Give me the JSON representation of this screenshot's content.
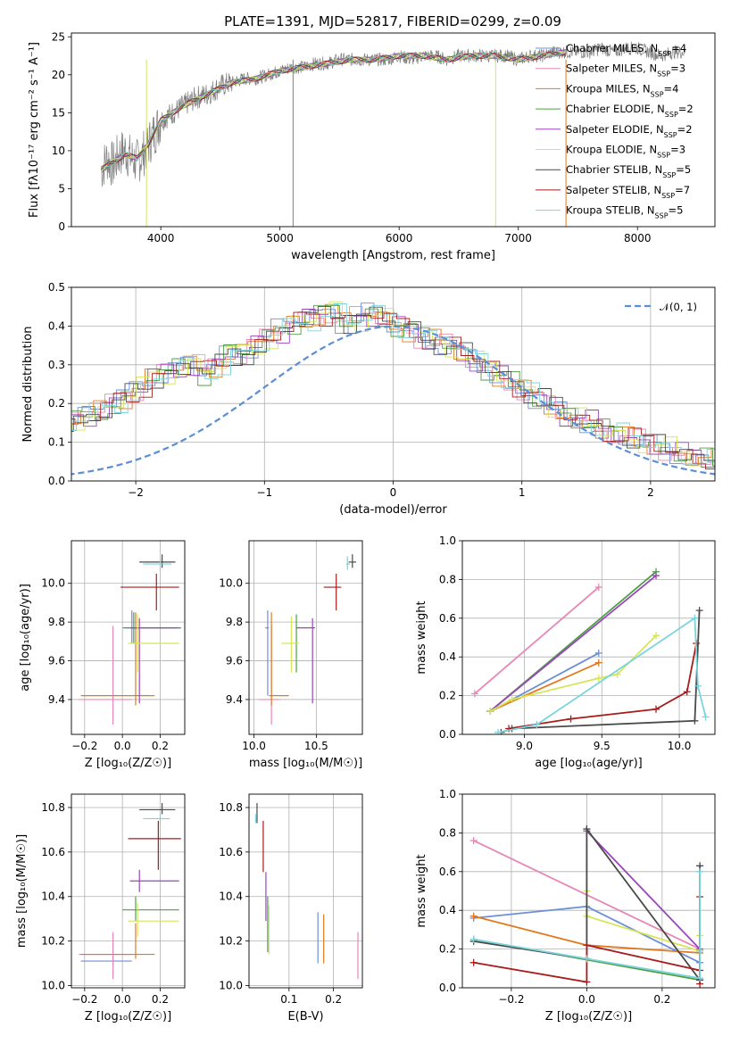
{
  "figure_title": "PLATE=1391, MJD=52817, FIBERID=0299, z=0.09",
  "models": [
    {
      "name": "Chabrier MILES",
      "nssp": "4",
      "color": "#6d8fd6"
    },
    {
      "name": "Salpeter MILES",
      "nssp": "3",
      "color": "#e687b6"
    },
    {
      "name": "Kroupa MILES",
      "nssp": "4",
      "color": "#e07a20"
    },
    {
      "name": "Chabrier ELODIE",
      "nssp": "2",
      "color": "#4f9e45"
    },
    {
      "name": "Salpeter ELODIE",
      "nssp": "2",
      "color": "#9a45bb"
    },
    {
      "name": "Kroupa ELODIE",
      "nssp": "3",
      "color": "#d4e655"
    },
    {
      "name": "Chabrier STELIB",
      "nssp": "5",
      "color": "#4a4a4a"
    },
    {
      "name": "Salpeter STELIB",
      "nssp": "7",
      "color": "#a81c1c"
    },
    {
      "name": "Kroupa STELIB",
      "nssp": "5",
      "color": "#7ad4dc"
    }
  ],
  "chart_data": [
    {
      "id": "spectrum",
      "type": "line",
      "title": "PLATE=1391, MJD=52817, FIBERID=0299, z=0.09",
      "xlabel": "wavelength [Angstrom, rest frame]",
      "ylabel": "Flux [fλ10⁻¹⁷ erg cm⁻² s⁻¹ A⁻¹]",
      "xlim": [
        3250,
        8650
      ],
      "ylim": [
        0,
        25.5
      ],
      "xticks": [
        4000,
        5000,
        6000,
        7000,
        8000
      ],
      "yticks": [
        0,
        5,
        10,
        15,
        20,
        25
      ],
      "grid": false,
      "legend": "right",
      "data_series": {
        "name": "",
        "color": "#7f7f7f",
        "x": [
          3500,
          3550,
          3600,
          3650,
          3700,
          3750,
          3800,
          3850,
          3900,
          3950,
          4000,
          4100,
          4200,
          4300,
          4400,
          4500,
          4600,
          4700,
          4800,
          4900,
          5000,
          5100,
          5200,
          5300,
          5400,
          5500,
          5600,
          5700,
          5800,
          5900,
          6000,
          6100,
          6200,
          6300,
          6400,
          6500,
          6600,
          6700,
          6800,
          6900,
          7000,
          7100,
          7200,
          7300,
          7400,
          7500,
          7600,
          7700,
          7800,
          7900,
          8000,
          8100,
          8200,
          8300,
          8400
        ],
        "y": [
          7.5,
          9.0,
          8.0,
          9.5,
          10.0,
          9.0,
          8.5,
          9.5,
          11.0,
          12.5,
          14.0,
          15.0,
          16.0,
          17.0,
          17.5,
          18.5,
          19.0,
          19.5,
          19.5,
          20.0,
          20.5,
          21.0,
          21.0,
          21.5,
          21.5,
          22.0,
          22.0,
          22.0,
          22.0,
          22.0,
          22.5,
          22.0,
          22.5,
          22.5,
          22.0,
          22.5,
          22.5,
          22.5,
          22.5,
          22.5,
          22.0,
          22.5,
          22.5,
          23.0,
          23.0,
          23.0,
          23.0,
          23.5,
          23.0,
          23.5,
          23.5,
          23.0,
          22.5,
          23.0,
          23.0
        ]
      },
      "model_series": {
        "x": [
          3500,
          3600,
          3700,
          3800,
          3900,
          4000,
          4200,
          4400,
          4600,
          4800,
          5000,
          5200,
          5400,
          5600,
          5800,
          6000,
          6200,
          6400,
          6600,
          6800,
          7000,
          7200,
          7400
        ],
        "y": [
          7.5,
          8.5,
          9.5,
          9.0,
          11.0,
          14.0,
          16.0,
          17.5,
          19.0,
          19.5,
          20.5,
          21.0,
          21.5,
          22.0,
          22.0,
          22.5,
          22.5,
          22.0,
          22.5,
          22.5,
          22.0,
          22.5,
          23.0
        ]
      }
    },
    {
      "id": "residuals",
      "type": "bar",
      "xlabel": "(data-model)/error",
      "ylabel": "Normed distribution",
      "xlim": [
        -2.5,
        2.5
      ],
      "ylim": [
        0,
        0.5
      ],
      "xticks": [
        -2,
        -1,
        0,
        1,
        2
      ],
      "yticks": [
        0.0,
        0.1,
        0.2,
        0.3,
        0.4,
        0.5
      ],
      "grid": true,
      "legend": "top-right",
      "reference": {
        "name": "𝒩(0, 1)",
        "color": "#5b8ed6"
      },
      "bin_width": 0.1,
      "base_hist": [
        0.05,
        0.05,
        0.055,
        0.06,
        0.07,
        0.08,
        0.09,
        0.1,
        0.11,
        0.13,
        0.15,
        0.16,
        0.17,
        0.18,
        0.2,
        0.22,
        0.24,
        0.27,
        0.28,
        0.29,
        0.3,
        0.28,
        0.3,
        0.33,
        0.33,
        0.35,
        0.37,
        0.39,
        0.41,
        0.42,
        0.43,
        0.44,
        0.41,
        0.42,
        0.43,
        0.42,
        0.4,
        0.39,
        0.37,
        0.36,
        0.35,
        0.33,
        0.31,
        0.29,
        0.27,
        0.25,
        0.23,
        0.21,
        0.19,
        0.17,
        0.16,
        0.15,
        0.13,
        0.12,
        0.11,
        0.1,
        0.09,
        0.08,
        0.07,
        0.06,
        0.055,
        0.05,
        0.045,
        0.04,
        0.035,
        0.03,
        0.03,
        0.03,
        0.025,
        0.025,
        0.025,
        0.025
      ]
    },
    {
      "id": "age-vs-Z",
      "type": "scatter",
      "xlabel": "Z [log₁₀(Z/Z☉)]",
      "ylabel": "age  [log₁₀(age/yr)]",
      "xlim": [
        -0.27,
        0.33
      ],
      "ylim": [
        9.22,
        10.22
      ],
      "xticks": [
        -0.2,
        0.0,
        0.2
      ],
      "yticks": [
        9.4,
        9.6,
        9.8,
        10.0
      ],
      "grid": true,
      "points": [
        {
          "m": 0,
          "x": 0.05,
          "y": 9.77,
          "xerr": [
            0.05,
            0.26
          ],
          "yerr": [
            0.08,
            0.09
          ]
        },
        {
          "m": 1,
          "x": -0.05,
          "y": 9.4,
          "xerr": [
            0.18,
            0.1
          ],
          "yerr": [
            0.13,
            0.38
          ]
        },
        {
          "m": 2,
          "x": 0.07,
          "y": 9.42,
          "xerr": [
            0.29,
            0.1
          ],
          "yerr": [
            0.05,
            0.43
          ]
        },
        {
          "m": 3,
          "x": 0.06,
          "y": 9.77,
          "xerr": [
            0.05,
            0.25
          ],
          "yerr": [
            0.08,
            0.08
          ]
        },
        {
          "m": 4,
          "x": 0.09,
          "y": 9.77,
          "xerr": [
            0.05,
            0.2
          ],
          "yerr": [
            0.39,
            0.05
          ]
        },
        {
          "m": 5,
          "x": 0.08,
          "y": 9.69,
          "xerr": [
            0.05,
            0.22
          ],
          "yerr": [
            0.15,
            0.15
          ]
        },
        {
          "m": 6,
          "x": 0.21,
          "y": 10.11,
          "xerr": [
            0.12,
            0.07
          ],
          "yerr": [
            0.03,
            0.04
          ]
        },
        {
          "m": 7,
          "x": 0.18,
          "y": 9.98,
          "xerr": [
            0.19,
            0.12
          ],
          "yerr": [
            0.12,
            0.07
          ]
        },
        {
          "m": 8,
          "x": 0.2,
          "y": 10.1,
          "xerr": [
            0.09,
            0.06
          ],
          "yerr": [
            0.03,
            0.03
          ]
        }
      ]
    },
    {
      "id": "age-vs-mass",
      "type": "scatter",
      "xlabel": "mass [log₁₀(M/M☉)]",
      "ylabel": "",
      "xlim": [
        9.96,
        10.87
      ],
      "ylim": [
        9.22,
        10.22
      ],
      "xticks": [
        10.0,
        10.5
      ],
      "yticks": [
        9.4,
        9.6,
        9.8,
        10.0
      ],
      "grid": true,
      "points": [
        {
          "m": 0,
          "x": 10.11,
          "y": 9.77,
          "xerr": [
            0.02,
            0.01
          ],
          "yerr": [
            0.35,
            0.09
          ]
        },
        {
          "m": 1,
          "x": 10.14,
          "y": 9.4,
          "xerr": [
            0.1,
            0.07
          ],
          "yerr": [
            0.13,
            0.38
          ]
        },
        {
          "m": 2,
          "x": 10.14,
          "y": 9.42,
          "xerr": [
            0.02,
            0.14
          ],
          "yerr": [
            0.05,
            0.43
          ]
        },
        {
          "m": 3,
          "x": 10.34,
          "y": 9.69,
          "xerr": [
            0.01,
            0.01
          ],
          "yerr": [
            0.15,
            0.15
          ]
        },
        {
          "m": 4,
          "x": 10.47,
          "y": 9.77,
          "xerr": [
            0.13,
            0.02
          ],
          "yerr": [
            0.39,
            0.05
          ]
        },
        {
          "m": 5,
          "x": 10.3,
          "y": 9.69,
          "xerr": [
            0.08,
            0.06
          ],
          "yerr": [
            0.15,
            0.14
          ]
        },
        {
          "m": 6,
          "x": 10.79,
          "y": 10.11,
          "xerr": [
            0.03,
            0.03
          ],
          "yerr": [
            0.03,
            0.04
          ]
        },
        {
          "m": 7,
          "x": 10.66,
          "y": 9.98,
          "xerr": [
            0.1,
            0.04
          ],
          "yerr": [
            0.12,
            0.07
          ]
        },
        {
          "m": 8,
          "x": 10.75,
          "y": 10.1,
          "xerr": [
            0.01,
            0.02
          ],
          "yerr": [
            0.03,
            0.04
          ]
        }
      ]
    },
    {
      "id": "weight-vs-age",
      "type": "line",
      "xlabel": "age  [log₁₀(age/yr)]",
      "ylabel": "mass weight",
      "xlim": [
        8.6,
        10.23
      ],
      "ylim": [
        0,
        1.0
      ],
      "xticks": [
        9.0,
        9.5,
        10.0
      ],
      "yticks": [
        0.0,
        0.2,
        0.4,
        0.6,
        0.8,
        1.0
      ],
      "grid": true,
      "series": [
        {
          "m": 0,
          "x": [
            8.78,
            9.48
          ],
          "y": [
            0.12,
            0.42
          ]
        },
        {
          "m": 1,
          "x": [
            8.68,
            9.48
          ],
          "y": [
            0.21,
            0.76
          ]
        },
        {
          "m": 2,
          "x": [
            8.78,
            9.48
          ],
          "y": [
            0.12,
            0.37
          ]
        },
        {
          "m": 3,
          "x": [
            8.78,
            9.85
          ],
          "y": [
            0.12,
            0.84
          ]
        },
        {
          "m": 4,
          "x": [
            8.78,
            9.85
          ],
          "y": [
            0.12,
            0.82
          ]
        },
        {
          "m": 5,
          "x": [
            8.78,
            8.92,
            9.48,
            9.6,
            9.85
          ],
          "y": [
            0.12,
            0.18,
            0.29,
            0.31,
            0.51
          ]
        },
        {
          "m": 6,
          "x": [
            8.85,
            8.92,
            10.1,
            10.13
          ],
          "y": [
            0.01,
            0.03,
            0.07,
            0.64
          ]
        },
        {
          "m": 7,
          "x": [
            8.9,
            9.3,
            9.85,
            10.05,
            10.11
          ],
          "y": [
            0.03,
            0.08,
            0.13,
            0.22,
            0.47
          ]
        },
        {
          "m": 8,
          "x": [
            8.83,
            9.08,
            10.1,
            10.12,
            10.17
          ],
          "y": [
            0.01,
            0.05,
            0.6,
            0.25,
            0.09
          ]
        }
      ]
    },
    {
      "id": "mass-vs-Z",
      "type": "scatter",
      "xlabel": "Z [log₁₀(Z/Z☉)]",
      "ylabel": "mass [log₁₀(M/M☉)]",
      "xlim": [
        -0.27,
        0.33
      ],
      "ylim": [
        9.99,
        10.86
      ],
      "xticks": [
        -0.2,
        0.0,
        0.2
      ],
      "yticks": [
        10.0,
        10.2,
        10.4,
        10.6,
        10.8
      ],
      "grid": true,
      "points": [
        {
          "m": 0,
          "x": -0.05,
          "y": 10.11,
          "xerr": [
            0.17,
            0.1
          ],
          "yerr": [
            0.02,
            0.02
          ]
        },
        {
          "m": 1,
          "x": -0.05,
          "y": 10.14,
          "xerr": [
            0.18,
            0.1
          ],
          "yerr": [
            0.11,
            0.1
          ]
        },
        {
          "m": 2,
          "x": 0.07,
          "y": 10.14,
          "xerr": [
            0.29,
            0.1
          ],
          "yerr": [
            0.02,
            0.14
          ]
        },
        {
          "m": 3,
          "x": 0.07,
          "y": 10.34,
          "xerr": [
            0.07,
            0.23
          ],
          "yerr": [
            0.05,
            0.06
          ]
        },
        {
          "m": 4,
          "x": 0.09,
          "y": 10.47,
          "xerr": [
            0.05,
            0.21
          ],
          "yerr": [
            0.05,
            0.05
          ]
        },
        {
          "m": 5,
          "x": 0.08,
          "y": 10.29,
          "xerr": [
            0.05,
            0.22
          ],
          "yerr": [
            0.07,
            0.08
          ]
        },
        {
          "m": 6,
          "x": 0.21,
          "y": 10.79,
          "xerr": [
            0.12,
            0.07
          ],
          "yerr": [
            0.02,
            0.03
          ]
        },
        {
          "m": 7,
          "x": 0.19,
          "y": 10.66,
          "xerr": [
            0.16,
            0.12
          ],
          "yerr": [
            0.14,
            0.08
          ]
        },
        {
          "m": 8,
          "x": 0.2,
          "y": 10.75,
          "xerr": [
            0.09,
            0.05
          ],
          "yerr": [
            0.03,
            0.03
          ]
        }
      ]
    },
    {
      "id": "mass-vs-ebv",
      "type": "scatter",
      "xlabel": "E(B-V)",
      "ylabel": "",
      "xlim": [
        0.01,
        0.265
      ],
      "ylim": [
        9.99,
        10.86
      ],
      "xticks": [
        0.1,
        0.2
      ],
      "yticks": [
        10.0,
        10.2,
        10.4,
        10.6,
        10.8
      ],
      "grid": true,
      "points": [
        {
          "m": 0,
          "x": 0.165,
          "y": 10.23,
          "yerr": [
            0.13,
            0.1
          ]
        },
        {
          "m": 1,
          "x": 0.255,
          "y": 10.14,
          "yerr": [
            0.11,
            0.1
          ]
        },
        {
          "m": 2,
          "x": 0.178,
          "y": 10.22,
          "yerr": [
            0.12,
            0.1
          ]
        },
        {
          "m": 3,
          "x": 0.052,
          "y": 10.29,
          "yerr": [
            0.14,
            0.11
          ]
        },
        {
          "m": 4,
          "x": 0.048,
          "y": 10.41,
          "yerr": [
            0.12,
            0.1
          ]
        },
        {
          "m": 5,
          "x": 0.055,
          "y": 10.26,
          "yerr": [
            0.12,
            0.1
          ]
        },
        {
          "m": 6,
          "x": 0.028,
          "y": 10.78,
          "yerr": [
            0.05,
            0.04
          ]
        },
        {
          "m": 7,
          "x": 0.042,
          "y": 10.62,
          "yerr": [
            0.11,
            0.12
          ]
        },
        {
          "m": 8,
          "x": 0.025,
          "y": 10.75,
          "yerr": [
            0.02,
            0.02
          ]
        }
      ]
    },
    {
      "id": "weight-vs-Z",
      "type": "line",
      "xlabel": "Z [log₁₀(Z/Z☉)]",
      "ylabel": "mass weight",
      "xlim": [
        -0.33,
        0.34
      ],
      "ylim": [
        0,
        1.0
      ],
      "xticks": [
        -0.2,
        0.0,
        0.2
      ],
      "yticks": [
        0.0,
        0.2,
        0.4,
        0.6,
        0.8,
        1.0
      ],
      "grid": true,
      "series": [
        {
          "m": 0,
          "x": [
            -0.3,
            0.0,
            0.3,
            0.3
          ],
          "y": [
            0.36,
            0.42,
            0.13,
            0.05
          ]
        },
        {
          "m": 1,
          "x": [
            -0.3,
            0.3
          ],
          "y": [
            0.76,
            0.2
          ]
        },
        {
          "m": 2,
          "x": [
            -0.3,
            0.0,
            0.3
          ],
          "y": [
            0.37,
            0.22,
            0.18
          ]
        },
        {
          "m": 3,
          "x": [
            -0.3,
            0.3
          ],
          "y": [
            0.25,
            0.04
          ]
        },
        {
          "m": 4,
          "x": [
            0.0,
            0.3
          ],
          "y": [
            0.81,
            0.2
          ]
        },
        {
          "m": 5,
          "x": [
            0.0,
            0.0,
            0.3,
            0.3
          ],
          "y": [
            0.5,
            0.37,
            0.19,
            0.27
          ]
        },
        {
          "m": 6,
          "x": [
            -0.3,
            0.0,
            0.0,
            0.3,
            0.3
          ],
          "y": [
            0.24,
            0.15,
            0.82,
            0.04,
            0.63
          ]
        },
        {
          "m": 7,
          "x": [
            -0.3,
            0.0,
            0.0,
            0.3,
            0.3,
            0.3
          ],
          "y": [
            0.13,
            0.03,
            0.22,
            0.09,
            0.02,
            0.47
          ]
        },
        {
          "m": 8,
          "x": [
            -0.3,
            0.0,
            0.3,
            0.3,
            0.3
          ],
          "y": [
            0.25,
            0.15,
            0.05,
            0.6,
            0.19
          ]
        }
      ]
    }
  ]
}
